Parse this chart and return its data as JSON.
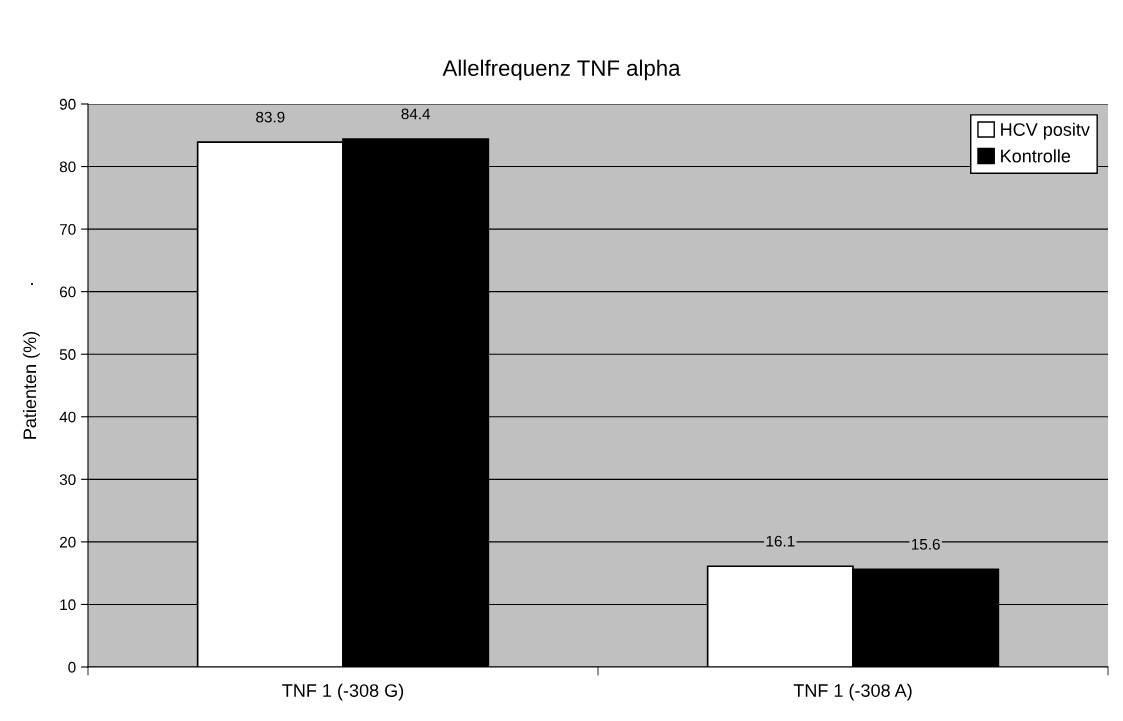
{
  "chart_data": {
    "type": "bar",
    "title": "Allelfrequenz TNF alpha",
    "ylabel": "Patienten (%)",
    "categories": [
      "TNF 1 (-308 G)",
      "TNF 1 (-308 A)"
    ],
    "series": [
      {
        "name": "HCV positv",
        "color": "#ffffff",
        "values": [
          83.9,
          16.1
        ]
      },
      {
        "name": "Kontrolle",
        "color": "#000000",
        "values": [
          84.4,
          15.6
        ]
      }
    ],
    "ylim": [
      0,
      90
    ],
    "yticks": [
      0,
      10,
      20,
      30,
      40,
      50,
      60,
      70,
      80,
      90
    ],
    "grid": "y",
    "legend": "top right",
    "data_labels": true,
    "annotations": [
      "."
    ]
  }
}
